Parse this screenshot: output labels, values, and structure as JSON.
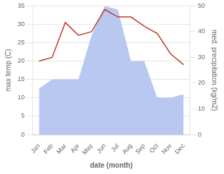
{
  "chart_data": {
    "type": "line",
    "xlabel": "date (month)",
    "ylabel": "max temp (C)",
    "y2label": "med. precipitation (kg/m2)",
    "categories": [
      "Jan",
      "Feb",
      "Mar",
      "Apr",
      "May",
      "Jun",
      "Jul",
      "Aug",
      "Sep",
      "Oct",
      "Nov",
      "Dec"
    ],
    "series": [
      {
        "type": "area",
        "color": "#b8c8f0",
        "values": [
          12.5,
          15.0,
          15.0,
          15.0,
          27.0,
          35.0,
          34.0,
          20.0,
          20.0,
          10.0,
          10.0,
          11.0
        ]
      },
      {
        "type": "line",
        "color": "#c0392b",
        "values": [
          20.0,
          21.0,
          30.5,
          27.0,
          28.0,
          34.0,
          32.0,
          32.0,
          29.5,
          27.5,
          22.0,
          19.0
        ]
      }
    ],
    "ylim": [
      0,
      35
    ],
    "yticks": [
      0,
      5,
      10,
      15,
      20,
      25,
      30,
      35
    ],
    "y2lim": [
      0,
      50
    ],
    "y2ticks": [
      0,
      10,
      20,
      30,
      40,
      50
    ],
    "grid": true
  }
}
